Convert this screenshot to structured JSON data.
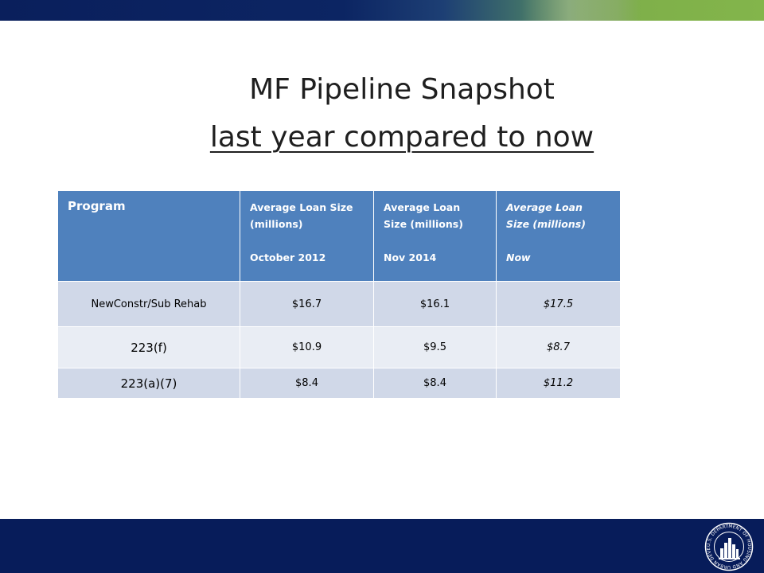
{
  "slide": {
    "title_line1": "MF Pipeline Snapshot",
    "title_line2": "last year compared to now"
  },
  "table": {
    "headers": [
      {
        "lines": [
          "Program"
        ]
      },
      {
        "lines": [
          "Average Loan Size",
          "(millions)",
          "",
          "October 2012"
        ]
      },
      {
        "lines": [
          "Average Loan",
          "Size (millions)",
          "",
          "Nov 2014"
        ]
      },
      {
        "lines": [
          "Average Loan",
          "Size (millions)",
          "",
          "Now"
        ]
      }
    ],
    "rows": [
      [
        "NewConstr/Sub Rehab",
        "$16.7",
        "$16.1",
        "$17.5"
      ],
      [
        "223(f)",
        "$10.9",
        "$9.5",
        "$8.7"
      ],
      [
        "223(a)(7)",
        "$8.4",
        "$8.4",
        "$11.2"
      ]
    ]
  },
  "logo": {
    "name": "hud-seal-icon",
    "seal_text": "U.S. DEPARTMENT OF HOUSING AND URBAN DEVELOPMENT"
  },
  "colors": {
    "header_blue": "#4f81bd",
    "row_dark": "#d0d8e8",
    "row_light": "#e9edf4",
    "banner_navy": "#071c5a",
    "banner_green": "#83b54b"
  }
}
